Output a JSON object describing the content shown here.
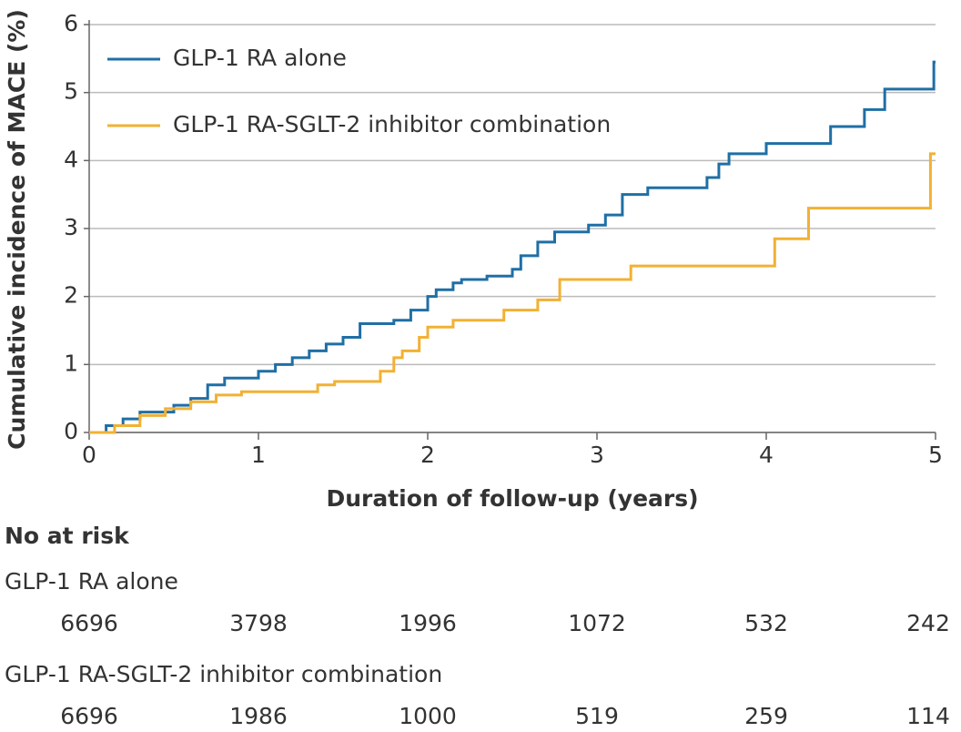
{
  "chart_data": {
    "type": "step",
    "xlabel": "Duration of follow-up (years)",
    "ylabel": "Cumulative incidence of MACE (%)",
    "xlim": [
      0,
      5
    ],
    "xticks": [
      0,
      1,
      2,
      3,
      4,
      5
    ],
    "ylim": [
      0,
      6
    ],
    "yticks": [
      0,
      1,
      2,
      3,
      4,
      5,
      6
    ],
    "grid": true,
    "legend": "upper left",
    "series": [
      {
        "name": "GLP-1 RA alone",
        "color": "#1f6fa5",
        "x": [
          0,
          0.1,
          0.2,
          0.3,
          0.5,
          0.6,
          0.7,
          0.8,
          1.0,
          1.1,
          1.2,
          1.3,
          1.4,
          1.5,
          1.6,
          1.8,
          1.9,
          2.0,
          2.05,
          2.15,
          2.2,
          2.35,
          2.5,
          2.55,
          2.65,
          2.75,
          2.95,
          3.05,
          3.15,
          3.3,
          3.65,
          3.72,
          3.78,
          4.0,
          4.38,
          4.58,
          4.7,
          4.99,
          5
        ],
        "values": [
          0,
          0.1,
          0.2,
          0.3,
          0.4,
          0.5,
          0.7,
          0.8,
          0.9,
          1.0,
          1.1,
          1.2,
          1.3,
          1.4,
          1.6,
          1.65,
          1.8,
          2.0,
          2.1,
          2.2,
          2.25,
          2.3,
          2.4,
          2.6,
          2.8,
          2.95,
          3.05,
          3.2,
          3.5,
          3.6,
          3.75,
          3.95,
          4.1,
          4.25,
          4.5,
          4.75,
          5.05,
          5.45,
          5.45
        ]
      },
      {
        "name": "GLP-1 RA-SGLT-2 inhibitor combination",
        "color": "#f2b134",
        "x": [
          0,
          0.15,
          0.3,
          0.45,
          0.6,
          0.75,
          0.9,
          1.35,
          1.45,
          1.72,
          1.8,
          1.85,
          1.95,
          2.0,
          2.15,
          2.45,
          2.65,
          2.78,
          3.2,
          4.05,
          4.25,
          4.97,
          5
        ],
        "values": [
          0,
          0.1,
          0.25,
          0.35,
          0.45,
          0.55,
          0.6,
          0.7,
          0.75,
          0.9,
          1.1,
          1.2,
          1.4,
          1.55,
          1.65,
          1.8,
          1.95,
          2.25,
          2.45,
          2.85,
          3.3,
          4.1,
          4.1
        ]
      }
    ],
    "at_risk": {
      "title": "No at risk",
      "rows": [
        {
          "name": "GLP-1 RA alone",
          "values": [
            6696,
            3798,
            1996,
            1072,
            532,
            242
          ]
        },
        {
          "name": "GLP-1 RA-SGLT-2 inhibitor combination",
          "values": [
            6696,
            1986,
            1000,
            519,
            259,
            114
          ]
        }
      ]
    }
  }
}
